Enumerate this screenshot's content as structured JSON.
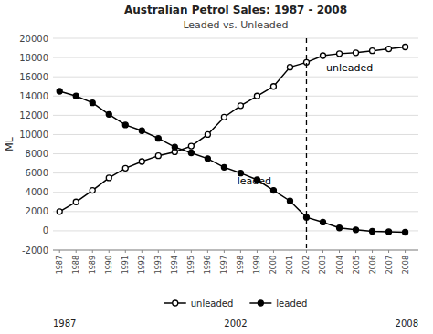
{
  "chart_data": {
    "type": "line",
    "title": "Australian Petrol Sales: 1987 - 2008",
    "subtitle": "Leaded vs. Unleaded",
    "y_label": "ML",
    "x": [
      1987,
      1988,
      1989,
      1990,
      1991,
      1992,
      1993,
      1994,
      1995,
      1996,
      1997,
      1998,
      1999,
      2000,
      2001,
      2002,
      2003,
      2004,
      2005,
      2006,
      2007,
      2008
    ],
    "series": [
      {
        "name": "unleaded",
        "color": "#000000",
        "marker": "open-circle",
        "values": [
          2000,
          3000,
          4200,
          5500,
          6500,
          7200,
          7800,
          8200,
          8800,
          10000,
          11800,
          13000,
          14000,
          15000,
          17000,
          17500,
          18200,
          18400,
          18500,
          18700,
          18900,
          19100
        ]
      },
      {
        "name": "leaded",
        "color": "#000000",
        "marker": "circle",
        "values": [
          14500,
          14000,
          13300,
          12100,
          11000,
          10400,
          9600,
          8700,
          8100,
          7500,
          6600,
          6000,
          5300,
          4200,
          3100,
          1400,
          900,
          300,
          100,
          -50,
          -100,
          -150
        ]
      }
    ],
    "vline": 2002,
    "annotations": [
      {
        "text": "unleaded",
        "x": 2003.2,
        "y": 17000
      },
      {
        "text": "leaded",
        "x": 1997.8,
        "y": 5200
      }
    ],
    "bottom_labels": [
      "1987",
      "2002",
      "2008"
    ],
    "xlim": [
      1986.6,
      2008.8
    ],
    "xticks": [
      1987,
      1988,
      1989,
      1990,
      1991,
      1992,
      1993,
      1994,
      1995,
      1996,
      1997,
      1998,
      1999,
      2000,
      2001,
      2002,
      2003,
      2004,
      2005,
      2006,
      2007,
      2008
    ],
    "ylim": [
      -2000,
      20000
    ],
    "yticks": [
      -2000,
      0,
      2000,
      4000,
      6000,
      8000,
      10000,
      12000,
      14000,
      16000,
      18000,
      20000
    ],
    "grid": true,
    "legend": "bottom"
  }
}
